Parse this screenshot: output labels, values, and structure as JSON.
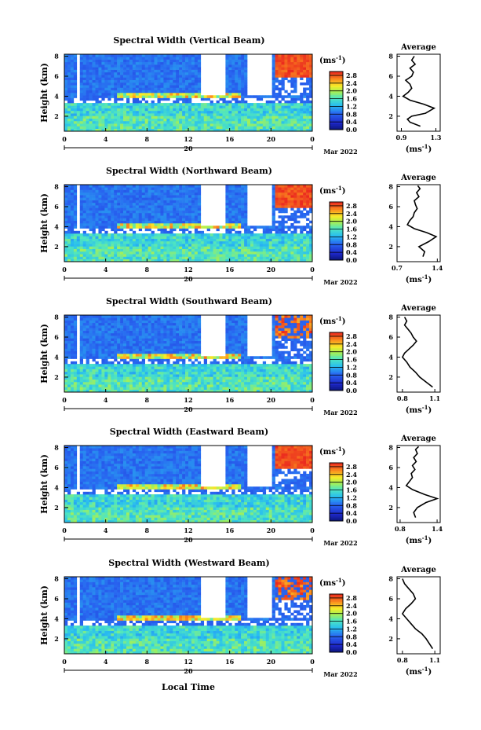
{
  "figure": {
    "xlabel": "Local Time",
    "date_label": "Mar 2022"
  },
  "chart_data": [
    {
      "type": "heatmap",
      "title": "Spectral Width (Vertical Beam)",
      "beam": "vertical",
      "ylabel": "Height (km)",
      "x_ticks": [
        "0",
        "4",
        "8",
        "12",
        "16",
        "20",
        "0"
      ],
      "day_label": "20",
      "y_ticks": [
        "2",
        "4",
        "6",
        "8"
      ],
      "xlim": [
        0,
        24
      ],
      "ylim": [
        0.5,
        8.2
      ],
      "colorbar": {
        "unit": "(ms-1)",
        "ticks": [
          "0.0",
          "0.4",
          "0.8",
          "1.2",
          "1.6",
          "2.0",
          "2.4",
          "2.8"
        ],
        "range": [
          0.0,
          3.0
        ]
      },
      "average": {
        "title": "Average",
        "unit": "(ms-1)",
        "xticks": [
          "0.9",
          "1.3"
        ],
        "xlim": [
          0.85,
          1.35
        ],
        "yticks": [
          "2",
          "4",
          "6",
          "8"
        ],
        "ylim": [
          0.5,
          8.2
        ],
        "profile": [
          [
            1.12,
            1.0
          ],
          [
            1.0,
            1.4
          ],
          [
            0.97,
            1.7
          ],
          [
            1.02,
            2.0
          ],
          [
            1.18,
            2.3
          ],
          [
            1.28,
            2.8
          ],
          [
            1.16,
            3.2
          ],
          [
            1.0,
            3.6
          ],
          [
            0.92,
            4.0
          ],
          [
            0.98,
            4.4
          ],
          [
            1.02,
            4.8
          ],
          [
            1.0,
            5.2
          ],
          [
            0.95,
            5.6
          ],
          [
            1.02,
            6.0
          ],
          [
            1.04,
            6.4
          ],
          [
            1.0,
            6.8
          ],
          [
            1.06,
            7.2
          ],
          [
            1.02,
            7.6
          ],
          [
            1.05,
            8.0
          ]
        ]
      }
    },
    {
      "type": "heatmap",
      "title": "Spectral Width (Northward Beam)",
      "beam": "northward",
      "ylabel": "Height (km)",
      "x_ticks": [
        "0",
        "4",
        "8",
        "12",
        "16",
        "20",
        "0"
      ],
      "day_label": "20",
      "y_ticks": [
        "2",
        "4",
        "6",
        "8"
      ],
      "xlim": [
        0,
        24
      ],
      "ylim": [
        0.5,
        8.2
      ],
      "colorbar": {
        "unit": "(ms-1)",
        "ticks": [
          "0.0",
          "0.4",
          "0.8",
          "1.2",
          "1.6",
          "2.0",
          "2.4",
          "2.8"
        ],
        "range": [
          0.0,
          3.0
        ]
      },
      "average": {
        "title": "Average",
        "unit": "(ms-1)",
        "xticks": [
          "0.7",
          "1.4"
        ],
        "xlim": [
          0.7,
          1.45
        ],
        "yticks": [
          "2",
          "4",
          "6",
          "8"
        ],
        "ylim": [
          0.5,
          8.2
        ],
        "profile": [
          [
            1.15,
            1.0
          ],
          [
            1.18,
            1.5
          ],
          [
            1.08,
            2.0
          ],
          [
            1.25,
            2.5
          ],
          [
            1.38,
            3.0
          ],
          [
            1.22,
            3.4
          ],
          [
            1.0,
            3.8
          ],
          [
            0.88,
            4.2
          ],
          [
            0.92,
            4.6
          ],
          [
            0.98,
            5.0
          ],
          [
            1.0,
            5.4
          ],
          [
            1.05,
            5.8
          ],
          [
            1.02,
            6.2
          ],
          [
            1.0,
            6.6
          ],
          [
            1.08,
            7.0
          ],
          [
            1.04,
            7.4
          ],
          [
            1.1,
            7.8
          ],
          [
            1.06,
            8.1
          ]
        ]
      }
    },
    {
      "type": "heatmap",
      "title": "Spectral Width (Southward Beam)",
      "beam": "southward",
      "ylabel": "Height (km)",
      "x_ticks": [
        "0",
        "4",
        "8",
        "12",
        "16",
        "20",
        "0"
      ],
      "day_label": "20",
      "y_ticks": [
        "2",
        "4",
        "6",
        "8"
      ],
      "xlim": [
        0,
        24
      ],
      "ylim": [
        0.5,
        8.2
      ],
      "colorbar": {
        "unit": "(ms-1)",
        "ticks": [
          "0.0",
          "0.4",
          "0.8",
          "1.2",
          "1.6",
          "2.0",
          "2.4",
          "2.8"
        ],
        "range": [
          0.0,
          3.0
        ]
      },
      "average": {
        "title": "Average",
        "unit": "(ms-1)",
        "xticks": [
          "0.8",
          "1.1"
        ],
        "xlim": [
          0.75,
          1.15
        ],
        "yticks": [
          "2",
          "4",
          "6",
          "8"
        ],
        "ylim": [
          0.5,
          8.2
        ],
        "profile": [
          [
            1.08,
            1.0
          ],
          [
            1.02,
            1.5
          ],
          [
            0.96,
            2.0
          ],
          [
            0.92,
            2.5
          ],
          [
            0.87,
            3.0
          ],
          [
            0.84,
            3.5
          ],
          [
            0.8,
            4.0
          ],
          [
            0.82,
            4.4
          ],
          [
            0.86,
            4.8
          ],
          [
            0.9,
            5.2
          ],
          [
            0.93,
            5.6
          ],
          [
            0.9,
            6.0
          ],
          [
            0.88,
            6.4
          ],
          [
            0.85,
            6.8
          ],
          [
            0.82,
            7.2
          ],
          [
            0.84,
            7.6
          ],
          [
            0.82,
            8.0
          ]
        ]
      }
    },
    {
      "type": "heatmap",
      "title": "Spectral Width (Eastward Beam)",
      "beam": "eastward",
      "ylabel": "Height (km)",
      "x_ticks": [
        "0",
        "4",
        "8",
        "12",
        "16",
        "20",
        "0"
      ],
      "day_label": "20",
      "y_ticks": [
        "2",
        "4",
        "6",
        "8"
      ],
      "xlim": [
        0,
        24
      ],
      "ylim": [
        0.5,
        8.2
      ],
      "colorbar": {
        "unit": "(ms-1)",
        "ticks": [
          "0.0",
          "0.4",
          "0.8",
          "1.2",
          "1.6",
          "2.0",
          "2.4",
          "2.8"
        ],
        "range": [
          0.0,
          3.0
        ]
      },
      "average": {
        "title": "Average",
        "unit": "(ms-1)",
        "xticks": [
          "0.8",
          "1.4"
        ],
        "xlim": [
          0.75,
          1.45
        ],
        "yticks": [
          "2",
          "4",
          "6",
          "8"
        ],
        "ylim": [
          0.5,
          8.2
        ],
        "profile": [
          [
            1.05,
            1.0
          ],
          [
            1.02,
            1.5
          ],
          [
            1.08,
            2.0
          ],
          [
            1.22,
            2.5
          ],
          [
            1.4,
            2.9
          ],
          [
            1.2,
            3.3
          ],
          [
            1.0,
            3.8
          ],
          [
            0.9,
            4.2
          ],
          [
            0.95,
            4.6
          ],
          [
            1.0,
            5.0
          ],
          [
            0.98,
            5.4
          ],
          [
            1.04,
            5.8
          ],
          [
            1.0,
            6.2
          ],
          [
            1.06,
            6.6
          ],
          [
            1.02,
            7.0
          ],
          [
            1.08,
            7.4
          ],
          [
            1.05,
            7.8
          ],
          [
            1.1,
            8.1
          ]
        ]
      }
    },
    {
      "type": "heatmap",
      "title": "Spectral Width (Westward Beam)",
      "beam": "westward",
      "ylabel": "Height (km)",
      "x_ticks": [
        "0",
        "4",
        "8",
        "12",
        "16",
        "20",
        "0"
      ],
      "day_label": "20",
      "y_ticks": [
        "2",
        "4",
        "6",
        "8"
      ],
      "xlim": [
        0,
        24
      ],
      "ylim": [
        0.5,
        8.2
      ],
      "colorbar": {
        "unit": "(ms-1)",
        "ticks": [
          "0.0",
          "0.4",
          "0.8",
          "1.2",
          "1.6",
          "2.0",
          "2.4",
          "2.8"
        ],
        "range": [
          0.0,
          3.0
        ]
      },
      "average": {
        "title": "Average",
        "unit": "(ms-1)",
        "xticks": [
          "0.8",
          "1.1"
        ],
        "xlim": [
          0.75,
          1.15
        ],
        "yticks": [
          "2",
          "4",
          "6",
          "8"
        ],
        "ylim": [
          0.5,
          8.2
        ],
        "profile": [
          [
            1.08,
            1.0
          ],
          [
            1.05,
            1.5
          ],
          [
            1.02,
            2.0
          ],
          [
            0.98,
            2.5
          ],
          [
            0.92,
            3.0
          ],
          [
            0.88,
            3.5
          ],
          [
            0.84,
            4.0
          ],
          [
            0.8,
            4.5
          ],
          [
            0.83,
            5.0
          ],
          [
            0.88,
            5.5
          ],
          [
            0.92,
            6.0
          ],
          [
            0.9,
            6.5
          ],
          [
            0.86,
            7.0
          ],
          [
            0.82,
            7.5
          ],
          [
            0.8,
            8.0
          ]
        ]
      }
    }
  ]
}
